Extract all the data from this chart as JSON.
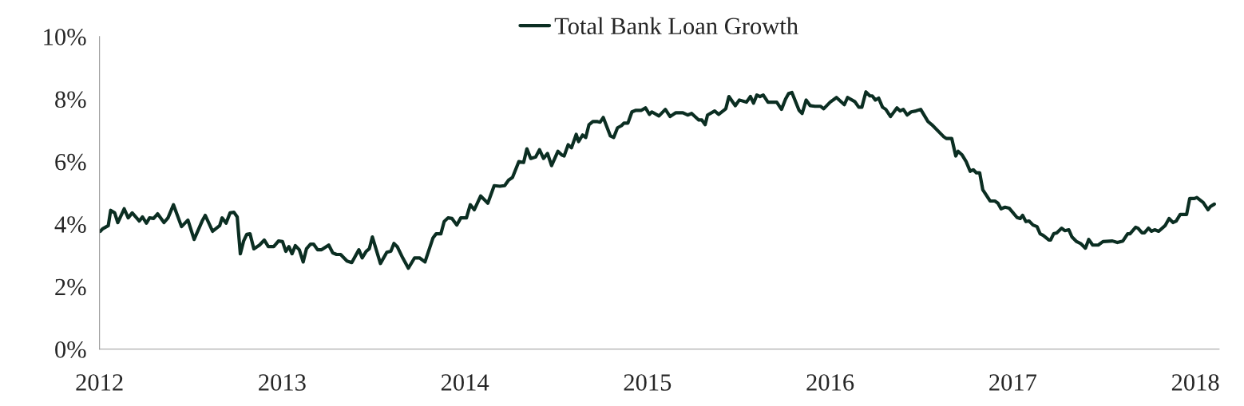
{
  "chart_data": {
    "type": "line",
    "x": [
      2012.004,
      2012.017,
      2012.048,
      2012.061,
      2012.083,
      2012.1,
      2012.135,
      2012.157,
      2012.179,
      2012.218,
      2012.235,
      2012.257,
      2012.274,
      2012.296,
      2012.318,
      2012.353,
      2012.375,
      2012.405,
      2012.449,
      2012.484,
      2012.518,
      2012.562,
      2012.579,
      2012.619,
      2012.658,
      2012.671,
      2012.693,
      2012.715,
      2012.736,
      2012.754,
      2012.771,
      2012.789,
      2012.806,
      2012.824,
      2012.845,
      2012.876,
      2012.902,
      2012.924,
      2012.954,
      2012.98,
      2013.002,
      2013.02,
      2013.037,
      2013.054,
      2013.072,
      2013.094,
      2013.115,
      2013.133,
      2013.155,
      2013.172,
      2013.194,
      2013.216,
      2013.255,
      2013.277,
      2013.298,
      2013.32,
      2013.355,
      2013.381,
      2013.42,
      2013.438,
      2013.46,
      2013.477,
      2013.494,
      2013.538,
      2013.573,
      2013.595,
      2013.612,
      2013.63,
      2013.66,
      2013.691,
      2013.725,
      2013.752,
      2013.782,
      2013.826,
      2013.843,
      2013.869,
      2013.887,
      2013.908,
      2013.93,
      2013.956,
      2013.978,
      2014.009,
      2014.03,
      2014.052,
      2014.087,
      2014.126,
      2014.161,
      2014.192,
      2014.218,
      2014.24,
      2014.261,
      2014.296,
      2014.322,
      2014.34,
      2014.361,
      2014.388,
      2014.409,
      2014.431,
      2014.453,
      2014.475,
      2014.51,
      2014.531,
      2014.544,
      2014.566,
      2014.584,
      2014.61,
      2014.623,
      2014.645,
      2014.662,
      2014.68,
      2014.701,
      2014.727,
      2014.741,
      2014.758,
      2014.797,
      2014.815,
      2014.836,
      2014.858,
      2014.871,
      2014.893,
      2014.915,
      2014.937,
      2014.967,
      2014.989,
      2015.011,
      2015.024,
      2015.063,
      2015.098,
      2015.124,
      2015.154,
      2015.194,
      2015.22,
      2015.242,
      2015.281,
      2015.298,
      2015.316,
      2015.329,
      2015.368,
      2015.39,
      2015.429,
      2015.446,
      2015.481,
      2015.503,
      2015.542,
      2015.564,
      2015.581,
      2015.599,
      2015.616,
      2015.634,
      2015.66,
      2015.708,
      2015.734,
      2015.756,
      2015.773,
      2015.791,
      2015.83,
      2015.847,
      2015.869,
      2015.891,
      2015.917,
      2015.947,
      2015.965,
      2016.0,
      2016.035,
      2016.078,
      2016.096,
      2016.135,
      2016.157,
      2016.174,
      2016.196,
      2016.218,
      2016.231,
      2016.248,
      2016.266,
      2016.287,
      2016.305,
      2016.331,
      2016.366,
      2016.383,
      2016.401,
      2016.422,
      2016.444,
      2016.47,
      2016.496,
      2016.536,
      2016.557,
      2016.623,
      2016.636,
      2016.666,
      2016.688,
      2016.701,
      2016.723,
      2016.745,
      2016.767,
      2016.784,
      2016.801,
      2016.819,
      2016.836,
      2016.876,
      2016.902,
      2016.919,
      2016.936,
      2016.958,
      2016.98,
      2017.024,
      2017.041,
      2017.054,
      2017.072,
      2017.089,
      2017.111,
      2017.133,
      2017.15,
      2017.167,
      2017.198,
      2017.207,
      2017.224,
      2017.241,
      2017.268,
      2017.285,
      2017.307,
      2017.324,
      2017.35,
      2017.372,
      2017.398,
      2017.416,
      2017.438,
      2017.468,
      2017.494,
      2017.546,
      2017.573,
      2017.603,
      2017.629,
      2017.642,
      2017.673,
      2017.686,
      2017.708,
      2017.721,
      2017.743,
      2017.76,
      2017.777,
      2017.799,
      2017.834,
      2017.856,
      2017.878,
      2017.895,
      2017.917,
      2017.952,
      2017.969,
      2017.995,
      2018.008,
      2018.043,
      2018.069,
      2018.082,
      2018.104
    ],
    "series": [
      {
        "name": "Total Bank Loan Growth",
        "color": "#0b2e22",
        "values": [
          3.77,
          3.85,
          3.95,
          4.44,
          4.36,
          4.05,
          4.49,
          4.2,
          4.36,
          4.1,
          4.23,
          4.03,
          4.2,
          4.18,
          4.33,
          4.05,
          4.2,
          4.62,
          3.92,
          4.13,
          3.51,
          4.1,
          4.28,
          3.77,
          3.95,
          4.2,
          4.03,
          4.36,
          4.38,
          4.23,
          3.05,
          3.46,
          3.67,
          3.69,
          3.21,
          3.33,
          3.49,
          3.28,
          3.28,
          3.46,
          3.44,
          3.13,
          3.28,
          3.05,
          3.31,
          3.18,
          2.79,
          3.21,
          3.36,
          3.36,
          3.18,
          3.18,
          3.33,
          3.08,
          3.03,
          3.03,
          2.82,
          2.77,
          3.18,
          2.92,
          3.13,
          3.21,
          3.59,
          2.74,
          3.1,
          3.13,
          3.38,
          3.28,
          2.92,
          2.59,
          2.92,
          2.92,
          2.79,
          3.56,
          3.69,
          3.69,
          4.08,
          4.2,
          4.18,
          3.97,
          4.2,
          4.2,
          4.62,
          4.46,
          4.9,
          4.67,
          5.23,
          5.21,
          5.23,
          5.41,
          5.49,
          6.0,
          5.97,
          6.41,
          6.1,
          6.15,
          6.38,
          6.1,
          6.26,
          5.87,
          6.33,
          6.21,
          6.18,
          6.54,
          6.44,
          6.87,
          6.64,
          6.85,
          6.77,
          7.18,
          7.28,
          7.28,
          7.26,
          7.41,
          6.82,
          6.77,
          7.08,
          7.15,
          7.23,
          7.23,
          7.59,
          7.64,
          7.64,
          7.72,
          7.51,
          7.59,
          7.46,
          7.67,
          7.44,
          7.56,
          7.56,
          7.49,
          7.54,
          7.33,
          7.33,
          7.18,
          7.49,
          7.62,
          7.51,
          7.69,
          8.08,
          7.79,
          7.97,
          7.9,
          8.08,
          7.87,
          8.13,
          8.08,
          8.13,
          7.9,
          7.9,
          7.67,
          8.0,
          8.18,
          8.21,
          7.64,
          7.54,
          7.97,
          7.79,
          7.77,
          7.77,
          7.69,
          7.9,
          8.05,
          7.82,
          8.05,
          7.92,
          7.74,
          7.74,
          8.23,
          8.1,
          8.1,
          7.97,
          8.03,
          7.74,
          7.67,
          7.44,
          7.72,
          7.62,
          7.67,
          7.49,
          7.59,
          7.62,
          7.67,
          7.28,
          7.18,
          6.79,
          6.74,
          6.74,
          6.18,
          6.33,
          6.21,
          6.0,
          5.69,
          5.74,
          5.64,
          5.64,
          5.1,
          4.74,
          4.74,
          4.67,
          4.49,
          4.54,
          4.51,
          4.21,
          4.18,
          4.28,
          4.08,
          4.1,
          3.97,
          3.92,
          3.69,
          3.64,
          3.49,
          3.49,
          3.69,
          3.72,
          3.87,
          3.79,
          3.82,
          3.59,
          3.44,
          3.38,
          3.23,
          3.51,
          3.33,
          3.33,
          3.44,
          3.46,
          3.41,
          3.46,
          3.69,
          3.69,
          3.9,
          3.87,
          3.72,
          3.72,
          3.87,
          3.77,
          3.82,
          3.77,
          3.95,
          4.18,
          4.05,
          4.1,
          4.31,
          4.31,
          4.82,
          4.82,
          4.85,
          4.69,
          4.46,
          4.56,
          4.64
        ]
      }
    ],
    "xlim": [
      2012,
      2018.13
    ],
    "xticks": [
      2012,
      2013,
      2014,
      2015,
      2016,
      2017,
      2018
    ],
    "ylim": [
      0,
      10
    ],
    "yticks": [
      {
        "value": 0,
        "label": "0%"
      },
      {
        "value": 2,
        "label": "2%"
      },
      {
        "value": 4,
        "label": "4%"
      },
      {
        "value": 6,
        "label": "6%"
      },
      {
        "value": 8,
        "label": "8%"
      },
      {
        "value": 10,
        "label": "10%"
      }
    ],
    "legend": "top",
    "grid": false,
    "marker": "none",
    "line_style": "solid"
  }
}
